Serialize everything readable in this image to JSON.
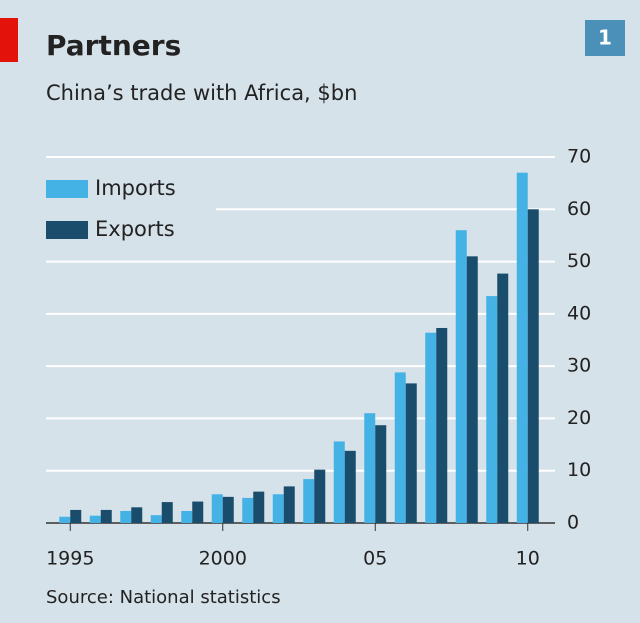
{
  "chart_data": {
    "type": "bar",
    "title": "Partners",
    "subtitle": "China’s trade with Africa, $bn",
    "badge": "1",
    "source": "Source: National statistics",
    "categories": [
      "1995",
      null,
      null,
      null,
      null,
      "2000",
      null,
      null,
      null,
      null,
      "05",
      null,
      null,
      null,
      null,
      "10"
    ],
    "series": [
      {
        "name": "Imports",
        "color": "#45b2e6",
        "values": [
          1.2,
          1.4,
          2.3,
          1.5,
          2.3,
          5.5,
          4.8,
          5.5,
          8.4,
          15.6,
          21,
          28.8,
          36.4,
          56,
          43.4,
          67
        ]
      },
      {
        "name": "Exports",
        "color": "#1a4c6b",
        "values": [
          2.5,
          2.5,
          3,
          4,
          4.1,
          5,
          6,
          7,
          10.2,
          13.8,
          18.7,
          26.7,
          37.3,
          51,
          47.7,
          60
        ]
      }
    ],
    "ylim": [
      0,
      70
    ],
    "yticks": [
      0,
      10,
      20,
      30,
      40,
      50,
      60,
      70
    ],
    "grid": true,
    "legend": "upper left"
  }
}
